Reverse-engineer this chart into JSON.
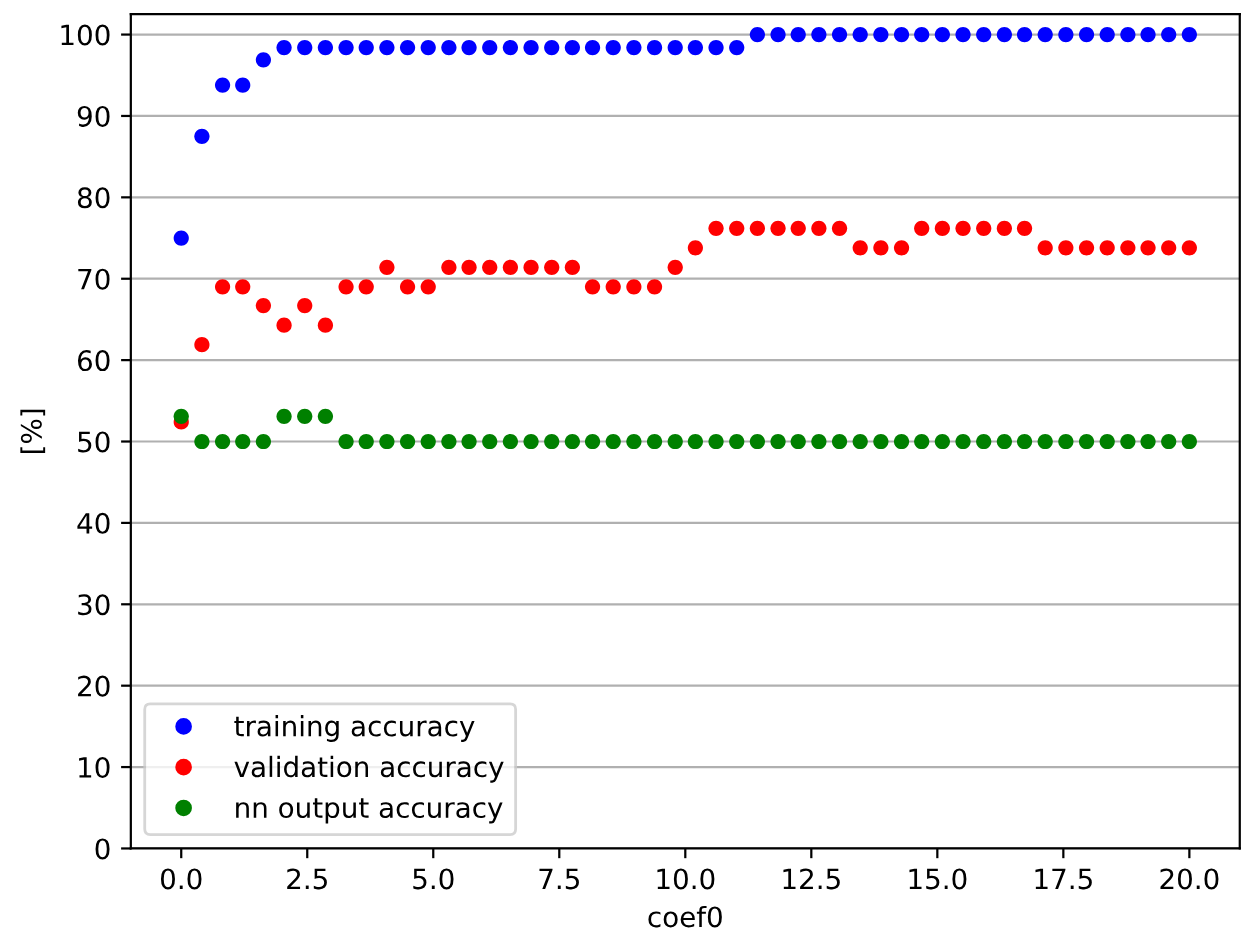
{
  "chart_data": {
    "type": "scatter",
    "xlabel": "coef0",
    "ylabel": "[%]",
    "x": [
      0.0,
      0.41,
      0.82,
      1.22,
      1.63,
      2.04,
      2.45,
      2.86,
      3.27,
      3.67,
      4.08,
      4.49,
      4.9,
      5.31,
      5.71,
      6.12,
      6.53,
      6.94,
      7.35,
      7.76,
      8.16,
      8.57,
      8.98,
      9.39,
      9.8,
      10.2,
      10.61,
      11.02,
      11.43,
      11.84,
      12.24,
      12.65,
      13.06,
      13.47,
      13.88,
      14.29,
      14.69,
      15.1,
      15.51,
      15.92,
      16.33,
      16.73,
      17.14,
      17.55,
      17.96,
      18.37,
      18.78,
      19.18,
      19.59,
      20.0
    ],
    "series": [
      {
        "name": "training accuracy",
        "color": "#0000ff",
        "values": [
          75.0,
          87.5,
          93.8,
          93.8,
          96.9,
          98.4,
          98.4,
          98.4,
          98.4,
          98.4,
          98.4,
          98.4,
          98.4,
          98.4,
          98.4,
          98.4,
          98.4,
          98.4,
          98.4,
          98.4,
          98.4,
          98.4,
          98.4,
          98.4,
          98.4,
          98.4,
          98.4,
          98.4,
          100,
          100,
          100,
          100,
          100,
          100,
          100,
          100,
          100,
          100,
          100,
          100,
          100,
          100,
          100,
          100,
          100,
          100,
          100,
          100,
          100,
          100
        ]
      },
      {
        "name": "validation accuracy",
        "color": "#ff0000",
        "values": [
          52.4,
          61.9,
          69.0,
          69.0,
          66.7,
          64.3,
          66.7,
          64.3,
          69.0,
          69.0,
          71.4,
          69.0,
          69.0,
          71.4,
          71.4,
          71.4,
          71.4,
          71.4,
          71.4,
          71.4,
          69.0,
          69.0,
          69.0,
          69.0,
          71.4,
          73.8,
          76.2,
          76.2,
          76.2,
          76.2,
          76.2,
          76.2,
          76.2,
          73.8,
          73.8,
          73.8,
          76.2,
          76.2,
          76.2,
          76.2,
          76.2,
          76.2,
          73.8,
          73.8,
          73.8,
          73.8,
          73.8,
          73.8,
          73.8,
          73.8
        ]
      },
      {
        "name": "nn output accuracy",
        "color": "#008000",
        "values": [
          53.1,
          50,
          50,
          50,
          50,
          53.1,
          53.1,
          53.1,
          50,
          50,
          50,
          50,
          50,
          50,
          50,
          50,
          50,
          50,
          50,
          50,
          50,
          50,
          50,
          50,
          50,
          50,
          50,
          50,
          50,
          50,
          50,
          50,
          50,
          50,
          50,
          50,
          50,
          50,
          50,
          50,
          50,
          50,
          50,
          50,
          50,
          50,
          50,
          50,
          50,
          50
        ]
      }
    ],
    "xlim": [
      -1,
      21
    ],
    "ylim": [
      0,
      102.5
    ],
    "xticks": [
      {
        "value": 0,
        "label": "0.0"
      },
      {
        "value": 2.5,
        "label": "2.5"
      },
      {
        "value": 5,
        "label": "5.0"
      },
      {
        "value": 7.5,
        "label": "7.5"
      },
      {
        "value": 10,
        "label": "10.0"
      },
      {
        "value": 12.5,
        "label": "12.5"
      },
      {
        "value": 15,
        "label": "15.0"
      },
      {
        "value": 17.5,
        "label": "17.5"
      },
      {
        "value": 20,
        "label": "20.0"
      }
    ],
    "yticks": [
      0,
      10,
      20,
      30,
      40,
      50,
      60,
      70,
      80,
      90,
      100
    ],
    "grid": "y",
    "legend": "bottom left",
    "marker": "circle"
  }
}
